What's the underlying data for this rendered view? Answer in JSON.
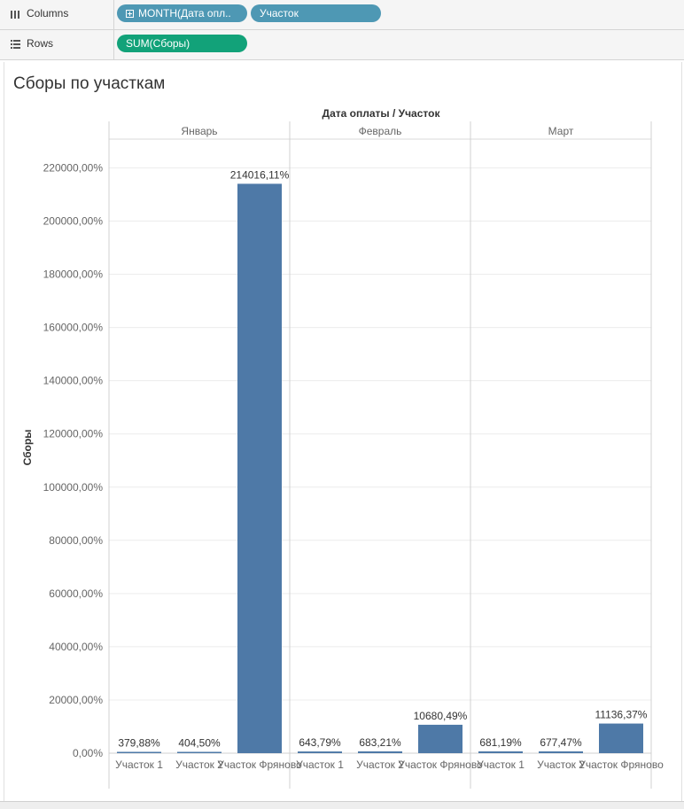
{
  "shelves": {
    "columns_label": "Columns",
    "rows_label": "Rows",
    "columns_pills": [
      "MONTH(Дата опл..",
      "Участок"
    ],
    "rows_pills": [
      "SUM(Сборы)"
    ]
  },
  "sheet_title": "Сборы по участкам",
  "colors": {
    "bar": "#4e79a7",
    "pill_dimension": "#4e98b4",
    "pill_measure": "#12a279"
  },
  "chart_data": {
    "type": "bar",
    "header_title": "Дата оплаты / Участок",
    "ylabel": "Сборы",
    "ylim": [
      0,
      230000
    ],
    "yticks": [
      "0,00%",
      "20000,00%",
      "40000,00%",
      "60000,00%",
      "80000,00%",
      "100000,00%",
      "120000,00%",
      "140000,00%",
      "160000,00%",
      "180000,00%",
      "200000,00%",
      "220000,00%"
    ],
    "grid": true,
    "panes": [
      {
        "label": "Январь",
        "categories": [
          "Участок 1",
          "Участок 2",
          "Участок Фряново"
        ],
        "values": [
          379.88,
          404.5,
          214016.11
        ],
        "labels": [
          "379,88%",
          "404,50%",
          "214016,11%"
        ]
      },
      {
        "label": "Февраль",
        "categories": [
          "Участок 1",
          "Участок 2",
          "Участок Фряново"
        ],
        "values": [
          643.79,
          683.21,
          10680.49
        ],
        "labels": [
          "643,79%",
          "683,21%",
          "10680,49%"
        ]
      },
      {
        "label": "Март",
        "categories": [
          "Участок 1",
          "Участок 2",
          "Участок Фряново"
        ],
        "values": [
          681.19,
          677.47,
          11136.37
        ],
        "labels": [
          "681,19%",
          "677,47%",
          "11136,37%"
        ]
      }
    ]
  }
}
